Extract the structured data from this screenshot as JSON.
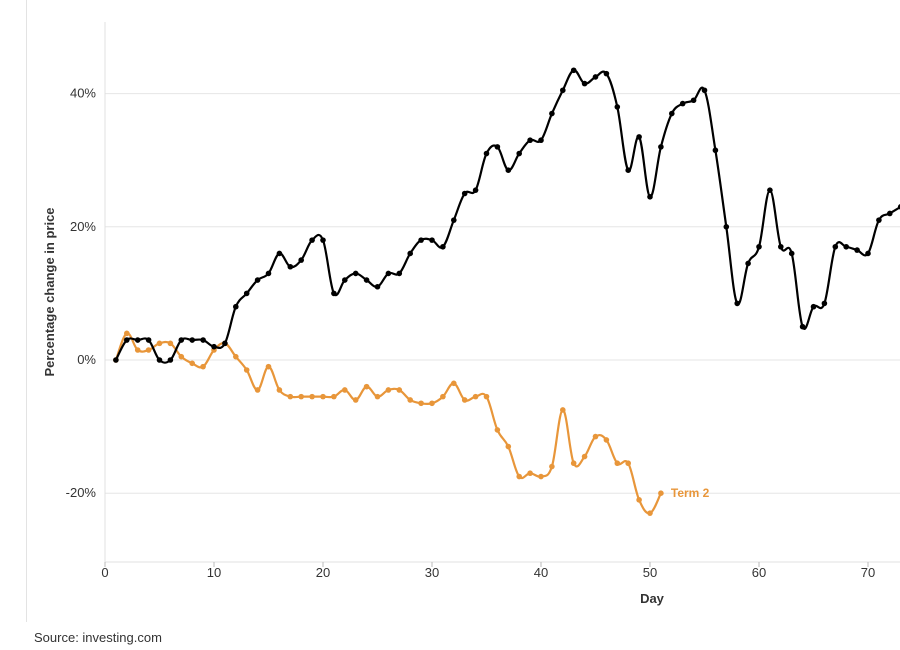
{
  "chart_data": {
    "type": "line",
    "title": "",
    "xlabel": "Day",
    "ylabel": "Percentage change in price",
    "xlim": [
      0,
      73
    ],
    "ylim": [
      -30,
      50
    ],
    "x_ticks": [
      0,
      10,
      20,
      30,
      40,
      50,
      60,
      70
    ],
    "y_ticks": [
      -20,
      0,
      20,
      40
    ],
    "y_tick_labels": [
      "-20%",
      "0%",
      "20%",
      "40%"
    ],
    "x_tick_labels": [
      "0",
      "10",
      "20",
      "30",
      "40",
      "50",
      "60",
      "70"
    ],
    "grid": "horizontal",
    "series": [
      {
        "name": "",
        "color": "#000000",
        "x": [
          1,
          2,
          3,
          4,
          5,
          6,
          7,
          8,
          9,
          10,
          11,
          12,
          13,
          14,
          15,
          16,
          17,
          18,
          19,
          20,
          21,
          22,
          23,
          24,
          25,
          26,
          27,
          28,
          29,
          30,
          31,
          32,
          33,
          34,
          35,
          36,
          37,
          38,
          39,
          40,
          41,
          42,
          43,
          44,
          45,
          46,
          47,
          48,
          49,
          50,
          51,
          52,
          53,
          54,
          55,
          56,
          57,
          58,
          59,
          60,
          61,
          62,
          63,
          64,
          65,
          66,
          67,
          68,
          69,
          70,
          71,
          72,
          73
        ],
        "y": [
          0,
          3,
          3,
          3,
          0,
          0,
          3,
          3,
          3,
          2,
          2.5,
          8,
          10,
          12,
          13,
          16,
          14,
          15,
          18,
          18,
          10,
          12,
          13,
          12,
          11,
          13,
          13,
          16,
          18,
          18,
          17,
          21,
          25,
          25.5,
          31,
          32,
          28.5,
          31,
          33,
          33,
          37,
          40.5,
          43.5,
          41.5,
          42.5,
          43,
          38,
          28.5,
          33.5,
          24.5,
          32,
          37,
          38.5,
          39,
          40.5,
          31.5,
          20,
          8.5,
          14.5,
          17,
          25.5,
          17,
          16,
          5,
          8,
          8.5,
          17,
          17,
          16.5,
          16,
          21,
          22,
          23
        ]
      },
      {
        "name": "Term 2",
        "color": "#E8963A",
        "x": [
          1,
          2,
          3,
          4,
          5,
          6,
          7,
          8,
          9,
          10,
          11,
          12,
          13,
          14,
          15,
          16,
          17,
          18,
          19,
          20,
          21,
          22,
          23,
          24,
          25,
          26,
          27,
          28,
          29,
          30,
          31,
          32,
          33,
          34,
          35,
          36,
          37,
          38,
          39,
          40,
          41,
          42,
          43,
          44,
          45,
          46,
          47,
          48,
          49,
          50,
          51
        ],
        "y": [
          0,
          4,
          1.5,
          1.5,
          2.5,
          2.5,
          0.5,
          -0.5,
          -1,
          1.5,
          2.5,
          0.5,
          -1.5,
          -4.5,
          -1,
          -4.5,
          -5.5,
          -5.5,
          -5.5,
          -5.5,
          -5.5,
          -4.5,
          -6,
          -4,
          -5.5,
          -4.5,
          -4.5,
          -6,
          -6.5,
          -6.5,
          -5.5,
          -3.5,
          -6,
          -5.5,
          -5.5,
          -10.5,
          -13,
          -17.5,
          -17,
          -17.5,
          -16,
          -7.5,
          -15.5,
          -14.5,
          -11.5,
          -12,
          -15.5,
          -15.5,
          -21,
          -23,
          -20
        ]
      }
    ],
    "annotations": [
      {
        "text": "Term 2",
        "series": 1
      }
    ]
  },
  "footer": {
    "source": "Source: investing.com"
  }
}
